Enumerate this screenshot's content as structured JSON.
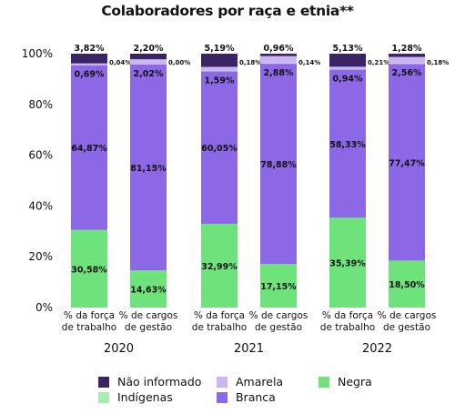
{
  "chart_data": {
    "type": "bar",
    "stacked": true,
    "title": "Colaboradores por raça e etnia**",
    "ylim": [
      0,
      100
    ],
    "y_ticks": [
      "0%",
      "20%",
      "40%",
      "60%",
      "80%",
      "100%"
    ],
    "grid": false,
    "legend_position": "bottom",
    "groups": [
      {
        "year": "2020",
        "bars": [
          {
            "category": [
              "% da força",
              "de trabalho"
            ],
            "values": {
              "Negra": 30.58,
              "Branca": 64.87,
              "Indígenas": 0.04,
              "Amarela": 0.69,
              "Não informado": 3.82
            },
            "labels": {
              "Negra": "30,58%",
              "Branca": "64,87%",
              "Indígenas": "0,04%",
              "Amarela": "0,69%",
              "Não informado": "3,82%"
            }
          },
          {
            "category": [
              "% de cargos",
              "de gestão"
            ],
            "values": {
              "Negra": 14.63,
              "Branca": 81.15,
              "Indígenas": 0.0,
              "Amarela": 2.02,
              "Não informado": 2.2
            },
            "labels": {
              "Negra": "14,63%",
              "Branca": "81,15%",
              "Indígenas": "0,00%",
              "Amarela": "2,02%",
              "Não informado": "2,20%"
            }
          }
        ]
      },
      {
        "year": "2021",
        "bars": [
          {
            "category": [
              "% da força",
              "de trabalho"
            ],
            "values": {
              "Negra": 32.99,
              "Branca": 60.05,
              "Indígenas": 0.18,
              "Amarela": 1.59,
              "Não informado": 5.19
            },
            "labels": {
              "Negra": "32,99%",
              "Branca": "60,05%",
              "Indígenas": "0,18%",
              "Amarela": "1,59%",
              "Não informado": "5,19%"
            }
          },
          {
            "category": [
              "% de cargos",
              "de gestão"
            ],
            "values": {
              "Negra": 17.15,
              "Branca": 78.88,
              "Indígenas": 0.14,
              "Amarela": 2.88,
              "Não informado": 0.96
            },
            "labels": {
              "Negra": "17,15%",
              "Branca": "78,88%",
              "Indígenas": "0,14%",
              "Amarela": "2,88%",
              "Não informado": "0,96%"
            }
          }
        ]
      },
      {
        "year": "2022",
        "bars": [
          {
            "category": [
              "% da força",
              "de trabalho"
            ],
            "values": {
              "Negra": 35.39,
              "Branca": 58.33,
              "Indígenas": 0.21,
              "Amarela": 0.94,
              "Não informado": 5.13
            },
            "labels": {
              "Negra": "35,39%",
              "Branca": "58,33%",
              "Indígenas": "0,21%",
              "Amarela": "0,94%",
              "Não informado": "5,13%"
            }
          },
          {
            "category": [
              "% de cargos",
              "de gestão"
            ],
            "values": {
              "Negra": 18.5,
              "Branca": 77.47,
              "Indígenas": 0.18,
              "Amarela": 2.56,
              "Não informado": 1.28
            },
            "labels": {
              "Negra": "18,50%",
              "Branca": "77,47%",
              "Indígenas": "0,18%",
              "Amarela": "2,56%",
              "Não informado": "1,28%"
            }
          }
        ]
      }
    ],
    "series": [
      {
        "name": "Não informado",
        "color": "#3a2466"
      },
      {
        "name": "Amarela",
        "color": "#c9b6f2"
      },
      {
        "name": "Negra",
        "color": "#6ee37c"
      },
      {
        "name": "Indígenas",
        "color": "#a6edb0"
      },
      {
        "name": "Branca",
        "color": "#8c68e6"
      }
    ]
  }
}
